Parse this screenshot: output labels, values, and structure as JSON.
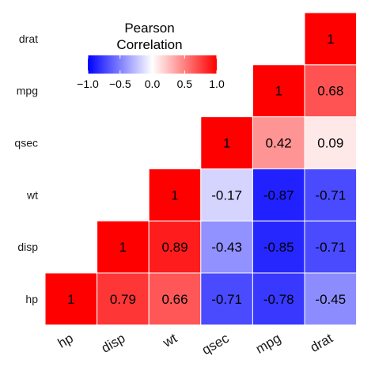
{
  "chart_data": {
    "type": "heatmap",
    "title": "",
    "x_categories": [
      "hp",
      "disp",
      "wt",
      "qsec",
      "mpg",
      "drat"
    ],
    "y_categories": [
      "hp",
      "disp",
      "wt",
      "qsec",
      "mpg",
      "drat"
    ],
    "matrix_lower_triangle": [
      {
        "y": "hp",
        "values": {
          "hp": 1,
          "disp": 0.79,
          "wt": 0.66,
          "qsec": -0.71,
          "mpg": -0.78,
          "drat": -0.45
        }
      },
      {
        "y": "disp",
        "values": {
          "disp": 1,
          "wt": 0.89,
          "qsec": -0.43,
          "mpg": -0.85,
          "drat": -0.71
        }
      },
      {
        "y": "wt",
        "values": {
          "wt": 1,
          "qsec": -0.17,
          "mpg": -0.87,
          "drat": -0.71
        }
      },
      {
        "y": "qsec",
        "values": {
          "qsec": 1,
          "mpg": 0.42,
          "drat": 0.09
        }
      },
      {
        "y": "mpg",
        "values": {
          "mpg": 1,
          "drat": 0.68
        }
      },
      {
        "y": "drat",
        "values": {
          "drat": 1
        }
      }
    ],
    "value_labels": {
      "hp": {
        "hp": "1",
        "disp": "0.79",
        "wt": "0.66",
        "qsec": "-0.71",
        "mpg": "-0.78",
        "drat": "-0.45"
      },
      "disp": {
        "disp": "1",
        "wt": "0.89",
        "qsec": "-0.43",
        "mpg": "-0.85",
        "drat": "-0.71"
      },
      "wt": {
        "wt": "1",
        "qsec": "-0.17",
        "mpg": "-0.87",
        "drat": "-0.71"
      },
      "qsec": {
        "qsec": "1",
        "mpg": "0.42",
        "drat": "0.09"
      },
      "mpg": {
        "mpg": "1",
        "drat": "0.68"
      },
      "drat": {
        "drat": "1"
      }
    },
    "legend": {
      "title_lines": [
        "Pearson",
        "Correlation"
      ],
      "range": [
        -1,
        1
      ],
      "ticks": [
        -1.0,
        -0.5,
        0.0,
        0.5,
        1.0
      ],
      "tick_labels": [
        "−1.0",
        "−0.5",
        "0.0",
        "0.5",
        "1.0"
      ],
      "placement": "top-left",
      "low_color": "#0000ff",
      "mid_color": "#ffffff",
      "high_color": "#ff0000"
    },
    "grid": false
  }
}
